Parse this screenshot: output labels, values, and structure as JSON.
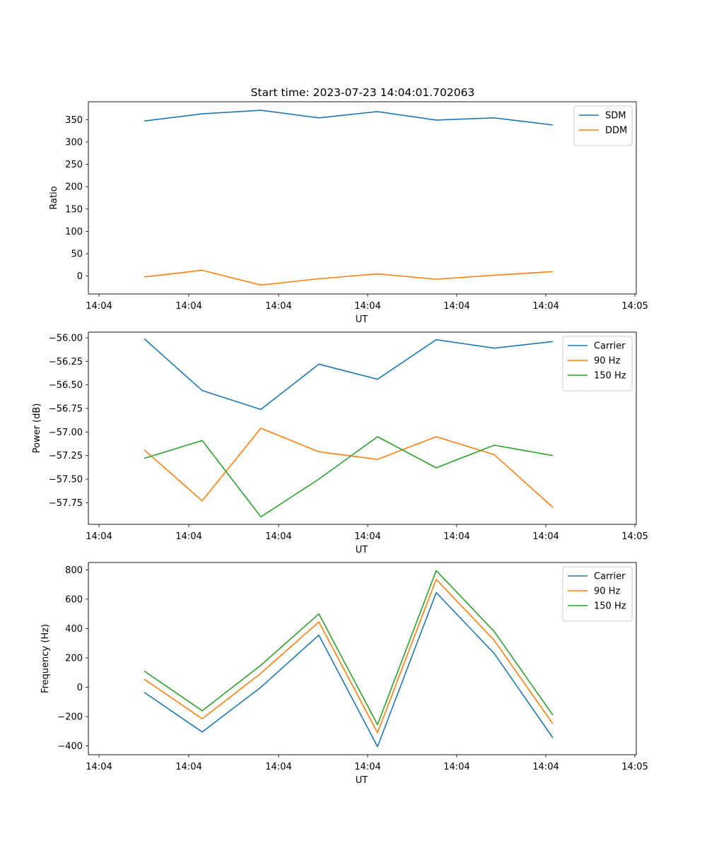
{
  "figure_title": "Start time: 2023-07-23 14:04:01.702063",
  "chart_data": [
    {
      "type": "line",
      "xlabel": "UT",
      "ylabel": "Ratio",
      "xticks": [
        "14:04",
        "14:04",
        "14:04",
        "14:04",
        "14:04",
        "14:04",
        "14:04"
      ],
      "xtick_last": "14:05",
      "ylim": [
        -40,
        390
      ],
      "yticks": [
        0,
        50,
        100,
        150,
        200,
        250,
        300,
        350
      ],
      "ytick_labels": [
        "0",
        "50",
        "100",
        "150",
        "200",
        "250",
        "300",
        "350"
      ],
      "legend_position": "top-right",
      "series": [
        {
          "name": "SDM",
          "color": "#1f77b4",
          "values": [
            347,
            363,
            371,
            354,
            368,
            349,
            354,
            338
          ]
        },
        {
          "name": "DDM",
          "color": "#ff7f0e",
          "values": [
            -2,
            13,
            -20,
            -6,
            5,
            -7,
            2,
            10
          ]
        }
      ]
    },
    {
      "type": "line",
      "xlabel": "UT",
      "ylabel": "Power (dB)",
      "xticks": [
        "14:04",
        "14:04",
        "14:04",
        "14:04",
        "14:04",
        "14:04",
        "14:04"
      ],
      "xtick_last": "14:05",
      "ylim": [
        -57.98,
        -55.94
      ],
      "yticks": [
        -57.75,
        -57.5,
        -57.25,
        -57.0,
        -56.75,
        -56.5,
        -56.25,
        -56.0
      ],
      "ytick_labels": [
        "−57.75",
        "−57.50",
        "−57.25",
        "−57.00",
        "−56.75",
        "−56.50",
        "−56.25",
        "−56.00"
      ],
      "legend_position": "top-right",
      "series": [
        {
          "name": "Carrier",
          "color": "#1f77b4",
          "values": [
            -56.01,
            -56.56,
            -56.76,
            -56.28,
            -56.44,
            -56.02,
            -56.11,
            -56.04
          ]
        },
        {
          "name": "90 Hz",
          "color": "#ff7f0e",
          "values": [
            -57.19,
            -57.73,
            -56.96,
            -57.21,
            -57.29,
            -57.05,
            -57.24,
            -57.8
          ]
        },
        {
          "name": "150 Hz",
          "color": "#2ca02c",
          "values": [
            -57.28,
            -57.09,
            -57.9,
            -57.5,
            -57.05,
            -57.38,
            -57.14,
            -57.25
          ]
        }
      ]
    },
    {
      "type": "line",
      "xlabel": "UT",
      "ylabel": "Frequency (Hz)",
      "xticks": [
        "14:04",
        "14:04",
        "14:04",
        "14:04",
        "14:04",
        "14:04",
        "14:04"
      ],
      "xtick_last": "14:05",
      "ylim": [
        -460,
        850
      ],
      "yticks": [
        -400,
        -200,
        0,
        200,
        400,
        600,
        800
      ],
      "ytick_labels": [
        "−400",
        "−200",
        "0",
        "200",
        "400",
        "600",
        "800"
      ],
      "legend_position": "top-right",
      "series": [
        {
          "name": "Carrier",
          "color": "#1f77b4",
          "values": [
            -35,
            -305,
            0,
            355,
            -405,
            645,
            230,
            -345
          ]
        },
        {
          "name": "90 Hz",
          "color": "#ff7f0e",
          "values": [
            55,
            -215,
            95,
            445,
            -310,
            735,
            320,
            -250
          ]
        },
        {
          "name": "150 Hz",
          "color": "#2ca02c",
          "values": [
            110,
            -160,
            150,
            500,
            -255,
            795,
            380,
            -190
          ]
        }
      ]
    }
  ]
}
